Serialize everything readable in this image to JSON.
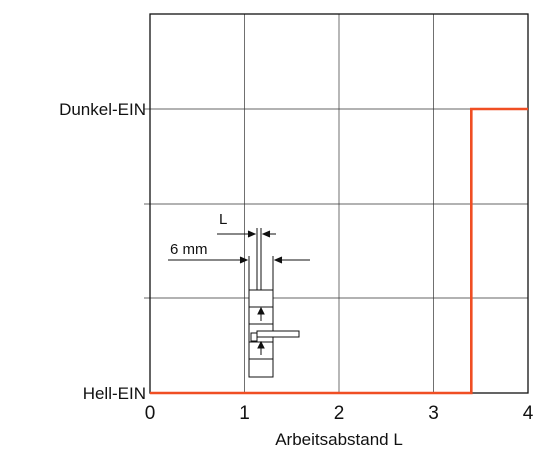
{
  "chart_data": {
    "type": "line",
    "title": "",
    "xlabel": "Arbeitsabstand L",
    "ylabel": "",
    "xlim": [
      0,
      4
    ],
    "x_ticks": [
      "0",
      "1",
      "2",
      "3",
      "4"
    ],
    "y_levels": [
      "Hell-EIN",
      "Dunkel-EIN"
    ],
    "grid": true,
    "series": [
      {
        "color": "#f04e23",
        "points": [
          {
            "x": 0,
            "state": 0
          },
          {
            "x": 3.4,
            "state": 0
          },
          {
            "x": 3.4,
            "state": 1
          },
          {
            "x": 4,
            "state": 1
          }
        ]
      }
    ],
    "inset": {
      "label_L": "L",
      "label_6mm": "6 mm"
    }
  }
}
